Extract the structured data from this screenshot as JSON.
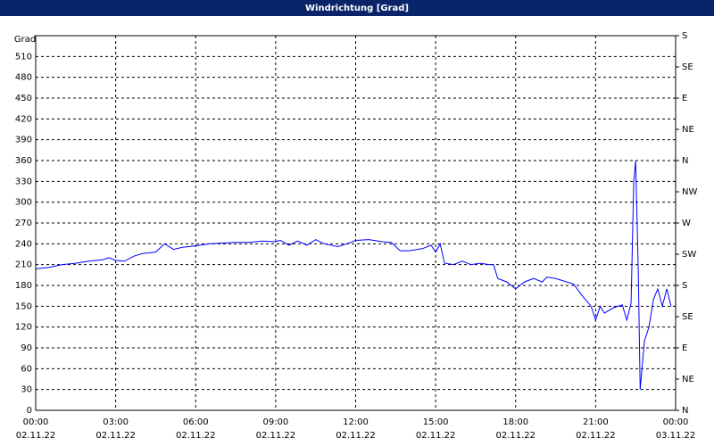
{
  "chart_data": {
    "type": "line",
    "title": "Windrichtung [Grad]",
    "y_label": "Grad",
    "x": [
      0,
      0.5,
      1,
      1.5,
      2,
      2.5,
      2.75,
      3,
      3.33,
      3.67,
      4,
      4.5,
      4.83,
      5.17,
      5.5,
      6,
      6.5,
      7,
      7.5,
      8,
      8.5,
      9,
      9.17,
      9.5,
      9.83,
      10.17,
      10.5,
      10.83,
      11.33,
      11.67,
      12,
      12.5,
      13,
      13.33,
      13.67,
      14,
      14.5,
      14.83,
      15,
      15.17,
      15.33,
      15.67,
      16,
      16.33,
      16.67,
      17,
      17.17,
      17.33,
      17.67,
      18,
      18.33,
      18.67,
      19,
      19.17,
      19.5,
      19.67,
      20.17,
      20.5,
      20.83,
      21,
      21.17,
      21.33,
      21.67,
      22,
      22.17,
      22.33,
      22.43,
      22.5,
      22.6,
      22.67,
      22.83,
      23,
      23.17,
      23.33,
      23.5,
      23.67,
      23.83
    ],
    "series": [
      {
        "name": "Windrichtung",
        "color": "#0000ff",
        "values": [
          204,
          206,
          210,
          212,
          215,
          217,
          220,
          216,
          215,
          222,
          226,
          228,
          240,
          232,
          235,
          237,
          240,
          241,
          242,
          242,
          244,
          243,
          245,
          238,
          244,
          238,
          246,
          240,
          236,
          240,
          245,
          246,
          243,
          242,
          230,
          230,
          233,
          238,
          228,
          240,
          212,
          210,
          215,
          210,
          212,
          210,
          210,
          190,
          185,
          175,
          185,
          190,
          185,
          192,
          190,
          188,
          182,
          165,
          150,
          130,
          150,
          140,
          148,
          152,
          130,
          155,
          330,
          360,
          200,
          30,
          100,
          120,
          160,
          175,
          150,
          175,
          150
        ]
      }
    ],
    "xlim": [
      0,
      24
    ],
    "xticks": [
      {
        "value": 0,
        "label": "00:00"
      },
      {
        "value": 3,
        "label": "03:00"
      },
      {
        "value": 6,
        "label": "06:00"
      },
      {
        "value": 9,
        "label": "09:00"
      },
      {
        "value": 12,
        "label": "12:00"
      },
      {
        "value": 15,
        "label": "15:00"
      },
      {
        "value": 18,
        "label": "18:00"
      },
      {
        "value": 21,
        "label": "21:00"
      },
      {
        "value": 24,
        "label": "00:00"
      }
    ],
    "xtick_dates": [
      "02.11.22",
      "02.11.22",
      "02.11.22",
      "02.11.22",
      "02.11.22",
      "02.11.22",
      "02.11.22",
      "02.11.22",
      "03.11.22"
    ],
    "ylim": [
      0,
      540
    ],
    "yticks": [
      0,
      30,
      60,
      90,
      120,
      150,
      180,
      210,
      240,
      270,
      300,
      330,
      360,
      390,
      420,
      450,
      480,
      510
    ],
    "y2lim": [
      0,
      540
    ],
    "y2ticks": [
      {
        "value": 0,
        "label": "N"
      },
      {
        "value": 45,
        "label": "NE"
      },
      {
        "value": 90,
        "label": "E"
      },
      {
        "value": 135,
        "label": "SE"
      },
      {
        "value": 180,
        "label": "S"
      },
      {
        "value": 225,
        "label": "SW"
      },
      {
        "value": 270,
        "label": "W"
      },
      {
        "value": 315,
        "label": "NW"
      },
      {
        "value": 360,
        "label": "N"
      },
      {
        "value": 405,
        "label": "NE"
      },
      {
        "value": 450,
        "label": "E"
      },
      {
        "value": 495,
        "label": "SE"
      },
      {
        "value": 540,
        "label": "S"
      }
    ],
    "grid": true
  }
}
